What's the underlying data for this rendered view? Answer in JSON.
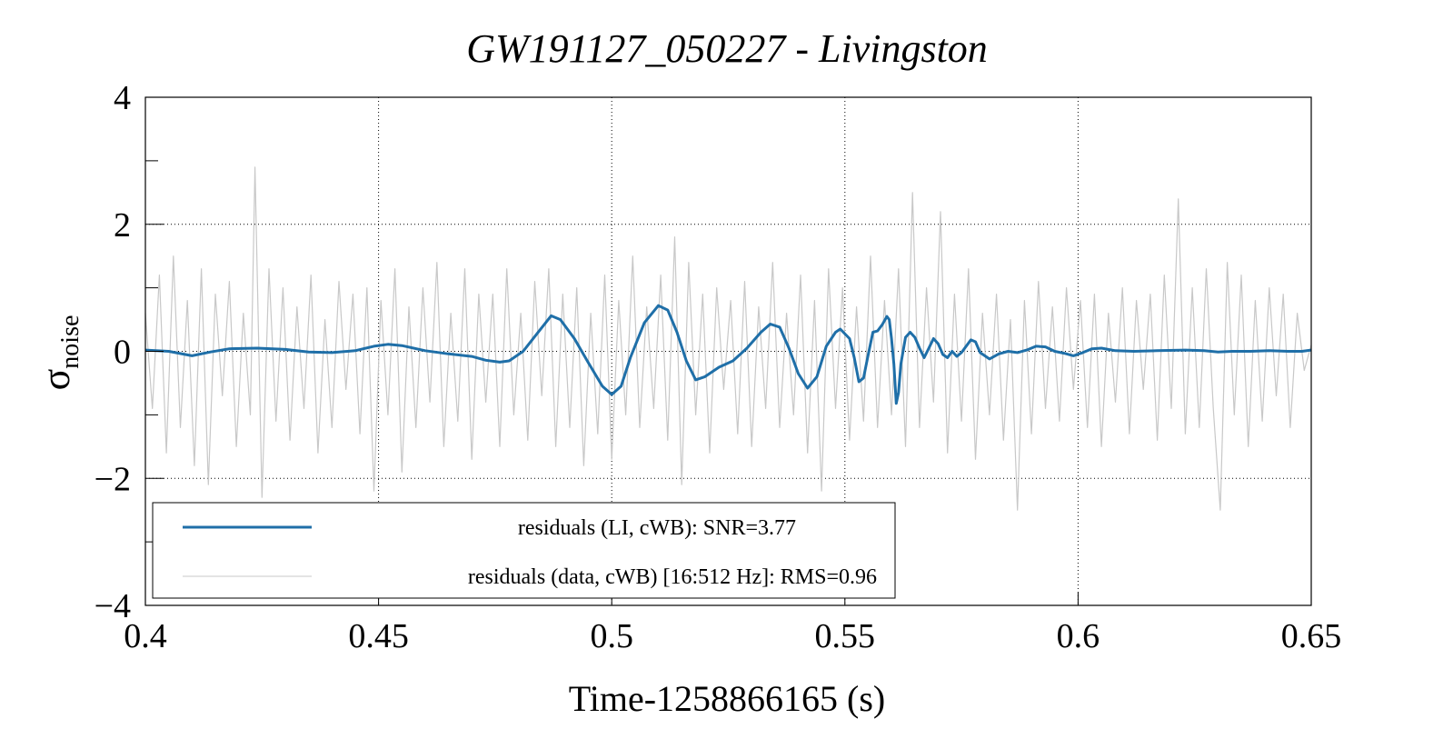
{
  "chart_data": {
    "type": "line",
    "title": "GW191127_050227 - Livingston",
    "xlabel": "Time-1258866165 (s)",
    "ylabel": "σ",
    "ylabel_subscript": "noise",
    "xlim": [
      0.4,
      0.65
    ],
    "ylim": [
      -4,
      4
    ],
    "x_ticks": [
      0.4,
      0.45,
      0.5,
      0.55,
      0.6,
      0.65
    ],
    "x_tick_labels": [
      "0.4",
      "0.45",
      "0.5",
      "0.55",
      "0.6",
      "0.65"
    ],
    "y_ticks": [
      -4,
      -2,
      0,
      2,
      4
    ],
    "y_tick_labels": [
      "−4",
      "−2",
      "0",
      "2",
      "4"
    ],
    "grid": true,
    "legend_position": "bottom-left",
    "series": [
      {
        "name": "residuals (LI, cWB): SNR=3.77",
        "color": "#1f6fa8",
        "points": [
          [
            0.4,
            0.02
          ],
          [
            0.405,
            0.0
          ],
          [
            0.41,
            -0.07
          ],
          [
            0.414,
            -0.01
          ],
          [
            0.418,
            0.04
          ],
          [
            0.424,
            0.05
          ],
          [
            0.43,
            0.03
          ],
          [
            0.435,
            -0.01
          ],
          [
            0.44,
            -0.02
          ],
          [
            0.445,
            0.01
          ],
          [
            0.449,
            0.08
          ],
          [
            0.452,
            0.11
          ],
          [
            0.455,
            0.09
          ],
          [
            0.46,
            0.01
          ],
          [
            0.465,
            -0.04
          ],
          [
            0.47,
            -0.08
          ],
          [
            0.473,
            -0.14
          ],
          [
            0.476,
            -0.17
          ],
          [
            0.478,
            -0.15
          ],
          [
            0.481,
            0.0
          ],
          [
            0.484,
            0.28
          ],
          [
            0.487,
            0.56
          ],
          [
            0.489,
            0.5
          ],
          [
            0.492,
            0.2
          ],
          [
            0.495,
            -0.18
          ],
          [
            0.498,
            -0.55
          ],
          [
            0.5,
            -0.68
          ],
          [
            0.502,
            -0.55
          ],
          [
            0.504,
            -0.1
          ],
          [
            0.507,
            0.45
          ],
          [
            0.51,
            0.72
          ],
          [
            0.512,
            0.65
          ],
          [
            0.514,
            0.3
          ],
          [
            0.516,
            -0.15
          ],
          [
            0.518,
            -0.45
          ],
          [
            0.52,
            -0.4
          ],
          [
            0.523,
            -0.25
          ],
          [
            0.526,
            -0.15
          ],
          [
            0.529,
            0.05
          ],
          [
            0.532,
            0.3
          ],
          [
            0.534,
            0.43
          ],
          [
            0.536,
            0.38
          ],
          [
            0.538,
            0.05
          ],
          [
            0.54,
            -0.35
          ],
          [
            0.542,
            -0.58
          ],
          [
            0.544,
            -0.4
          ],
          [
            0.546,
            0.08
          ],
          [
            0.548,
            0.3
          ],
          [
            0.549,
            0.35
          ],
          [
            0.551,
            0.2
          ],
          [
            0.552,
            -0.1
          ],
          [
            0.553,
            -0.48
          ],
          [
            0.554,
            -0.42
          ],
          [
            0.555,
            -0.05
          ],
          [
            0.556,
            0.3
          ],
          [
            0.557,
            0.32
          ],
          [
            0.558,
            0.42
          ],
          [
            0.559,
            0.55
          ],
          [
            0.5595,
            0.5
          ],
          [
            0.56,
            0.2
          ],
          [
            0.5605,
            -0.2
          ],
          [
            0.561,
            -0.82
          ],
          [
            0.5615,
            -0.65
          ],
          [
            0.562,
            -0.2
          ],
          [
            0.563,
            0.22
          ],
          [
            0.564,
            0.3
          ],
          [
            0.565,
            0.22
          ],
          [
            0.566,
            0.05
          ],
          [
            0.567,
            -0.1
          ],
          [
            0.568,
            0.05
          ],
          [
            0.569,
            0.2
          ],
          [
            0.57,
            0.12
          ],
          [
            0.571,
            -0.05
          ],
          [
            0.572,
            -0.1
          ],
          [
            0.573,
            0.0
          ],
          [
            0.574,
            -0.08
          ],
          [
            0.575,
            -0.02
          ],
          [
            0.577,
            0.18
          ],
          [
            0.578,
            0.15
          ],
          [
            0.579,
            -0.02
          ],
          [
            0.581,
            -0.12
          ],
          [
            0.583,
            -0.04
          ],
          [
            0.585,
            0.0
          ],
          [
            0.587,
            -0.02
          ],
          [
            0.589,
            0.02
          ],
          [
            0.591,
            0.08
          ],
          [
            0.593,
            0.07
          ],
          [
            0.595,
            0.0
          ],
          [
            0.597,
            -0.03
          ],
          [
            0.599,
            -0.07
          ],
          [
            0.601,
            -0.02
          ],
          [
            0.603,
            0.04
          ],
          [
            0.605,
            0.05
          ],
          [
            0.608,
            0.01
          ],
          [
            0.612,
            0.0
          ],
          [
            0.617,
            0.01
          ],
          [
            0.623,
            0.02
          ],
          [
            0.627,
            0.01
          ],
          [
            0.63,
            -0.01
          ],
          [
            0.633,
            0.0
          ],
          [
            0.637,
            0.0
          ],
          [
            0.641,
            0.01
          ],
          [
            0.645,
            0.0
          ],
          [
            0.648,
            0.0
          ],
          [
            0.65,
            0.02
          ]
        ]
      },
      {
        "name": "residuals (data, cWB) [16:512 Hz]: RMS=0.96",
        "color": "#c8c8c8",
        "points": [
          [
            0.4,
            0.6
          ],
          [
            0.4015,
            -0.9
          ],
          [
            0.403,
            1.2
          ],
          [
            0.4045,
            -1.6
          ],
          [
            0.406,
            1.5
          ],
          [
            0.4075,
            -1.2
          ],
          [
            0.409,
            0.8
          ],
          [
            0.4105,
            -1.8
          ],
          [
            0.412,
            1.3
          ],
          [
            0.4135,
            -2.1
          ],
          [
            0.415,
            0.9
          ],
          [
            0.4165,
            -0.7
          ],
          [
            0.418,
            1.1
          ],
          [
            0.4195,
            -1.5
          ],
          [
            0.421,
            0.6
          ],
          [
            0.4225,
            -1.0
          ],
          [
            0.4235,
            2.9
          ],
          [
            0.425,
            -2.3
          ],
          [
            0.4265,
            1.3
          ],
          [
            0.428,
            -1.1
          ],
          [
            0.4295,
            1.0
          ],
          [
            0.431,
            -1.4
          ],
          [
            0.4325,
            0.7
          ],
          [
            0.434,
            -0.9
          ],
          [
            0.4355,
            1.2
          ],
          [
            0.437,
            -1.6
          ],
          [
            0.4385,
            0.5
          ],
          [
            0.44,
            -1.2
          ],
          [
            0.4415,
            1.1
          ],
          [
            0.443,
            -0.6
          ],
          [
            0.4445,
            0.9
          ],
          [
            0.446,
            -1.3
          ],
          [
            0.4475,
            1.0
          ],
          [
            0.449,
            -2.2
          ],
          [
            0.4505,
            0.8
          ],
          [
            0.452,
            -1.0
          ],
          [
            0.4535,
            1.3
          ],
          [
            0.455,
            -1.9
          ],
          [
            0.4565,
            0.7
          ],
          [
            0.458,
            -1.2
          ],
          [
            0.4595,
            1.0
          ],
          [
            0.461,
            -0.8
          ],
          [
            0.4625,
            1.4
          ],
          [
            0.464,
            -1.5
          ],
          [
            0.4655,
            0.6
          ],
          [
            0.467,
            -1.1
          ],
          [
            0.4685,
            1.3
          ],
          [
            0.47,
            -1.7
          ],
          [
            0.4715,
            0.9
          ],
          [
            0.473,
            -0.8
          ],
          [
            0.4745,
            0.9
          ],
          [
            0.476,
            -1.5
          ],
          [
            0.4775,
            1.3
          ],
          [
            0.479,
            -1.0
          ],
          [
            0.4805,
            0.6
          ],
          [
            0.482,
            -1.4
          ],
          [
            0.4835,
            1.1
          ],
          [
            0.485,
            -0.7
          ],
          [
            0.4865,
            1.3
          ],
          [
            0.488,
            -1.5
          ],
          [
            0.4895,
            0.9
          ],
          [
            0.491,
            -1.2
          ],
          [
            0.4925,
            1.0
          ],
          [
            0.494,
            -1.8
          ],
          [
            0.4955,
            0.6
          ],
          [
            0.497,
            -1.3
          ],
          [
            0.4985,
            1.2
          ],
          [
            0.5,
            -1.7
          ],
          [
            0.5015,
            0.8
          ],
          [
            0.503,
            -1.0
          ],
          [
            0.5045,
            1.5
          ],
          [
            0.506,
            -1.2
          ],
          [
            0.5075,
            0.7
          ],
          [
            0.509,
            -0.9
          ],
          [
            0.5105,
            1.2
          ],
          [
            0.512,
            -1.4
          ],
          [
            0.5135,
            1.8
          ],
          [
            0.515,
            -2.1
          ],
          [
            0.5165,
            1.4
          ],
          [
            0.518,
            -1.0
          ],
          [
            0.5195,
            0.9
          ],
          [
            0.521,
            -1.6
          ],
          [
            0.5225,
            1.0
          ],
          [
            0.524,
            -0.6
          ],
          [
            0.5255,
            0.8
          ],
          [
            0.527,
            -1.3
          ],
          [
            0.5285,
            1.1
          ],
          [
            0.53,
            -1.5
          ],
          [
            0.5315,
            0.7
          ],
          [
            0.533,
            -0.9
          ],
          [
            0.5345,
            1.4
          ],
          [
            0.536,
            -1.2
          ],
          [
            0.5375,
            0.6
          ],
          [
            0.539,
            -1.0
          ],
          [
            0.5405,
            1.2
          ],
          [
            0.542,
            -1.6
          ],
          [
            0.5435,
            0.8
          ],
          [
            0.545,
            -2.2
          ],
          [
            0.5465,
            1.3
          ],
          [
            0.548,
            -0.9
          ],
          [
            0.5495,
            1.0
          ],
          [
            0.551,
            -1.4
          ],
          [
            0.5525,
            0.7
          ],
          [
            0.554,
            -1.1
          ],
          [
            0.5555,
            1.5
          ],
          [
            0.557,
            -1.2
          ],
          [
            0.5585,
            0.8
          ],
          [
            0.56,
            -1.0
          ],
          [
            0.5615,
            1.3
          ],
          [
            0.563,
            -1.5
          ],
          [
            0.5645,
            2.5
          ],
          [
            0.566,
            -1.2
          ],
          [
            0.5675,
            1.0
          ],
          [
            0.569,
            -0.8
          ],
          [
            0.5705,
            2.2
          ],
          [
            0.572,
            -1.6
          ],
          [
            0.5735,
            0.9
          ],
          [
            0.575,
            -1.1
          ],
          [
            0.5765,
            1.3
          ],
          [
            0.578,
            -1.7
          ],
          [
            0.5795,
            0.6
          ],
          [
            0.581,
            -1.0
          ],
          [
            0.5825,
            0.9
          ],
          [
            0.584,
            -1.4
          ],
          [
            0.5855,
            0.5
          ],
          [
            0.587,
            -2.5
          ],
          [
            0.5885,
            0.8
          ],
          [
            0.59,
            -1.3
          ],
          [
            0.5915,
            1.1
          ],
          [
            0.593,
            -0.9
          ],
          [
            0.5945,
            0.7
          ],
          [
            0.596,
            -1.1
          ],
          [
            0.5975,
            1.0
          ],
          [
            0.599,
            -0.6
          ],
          [
            0.6005,
            0.8
          ],
          [
            0.602,
            -1.2
          ],
          [
            0.6035,
            0.9
          ],
          [
            0.605,
            -1.5
          ],
          [
            0.6065,
            0.6
          ],
          [
            0.608,
            -0.8
          ],
          [
            0.6095,
            1.0
          ],
          [
            0.611,
            -1.3
          ],
          [
            0.6125,
            0.8
          ],
          [
            0.614,
            -0.6
          ],
          [
            0.6155,
            0.9
          ],
          [
            0.617,
            -1.4
          ],
          [
            0.6185,
            1.2
          ],
          [
            0.62,
            -0.9
          ],
          [
            0.6215,
            2.4
          ],
          [
            0.623,
            -1.3
          ],
          [
            0.6245,
            1.0
          ],
          [
            0.626,
            -1.2
          ],
          [
            0.6275,
            1.3
          ],
          [
            0.629,
            -0.9
          ],
          [
            0.6305,
            -2.5
          ],
          [
            0.632,
            1.4
          ],
          [
            0.6335,
            -1.0
          ],
          [
            0.635,
            1.2
          ],
          [
            0.6365,
            -1.5
          ],
          [
            0.638,
            0.8
          ],
          [
            0.6395,
            -1.1
          ],
          [
            0.641,
            1.0
          ],
          [
            0.6425,
            -0.7
          ],
          [
            0.644,
            0.9
          ],
          [
            0.6455,
            -1.2
          ],
          [
            0.647,
            0.6
          ],
          [
            0.6485,
            -0.3
          ],
          [
            0.65,
            0.1
          ]
        ]
      }
    ]
  }
}
